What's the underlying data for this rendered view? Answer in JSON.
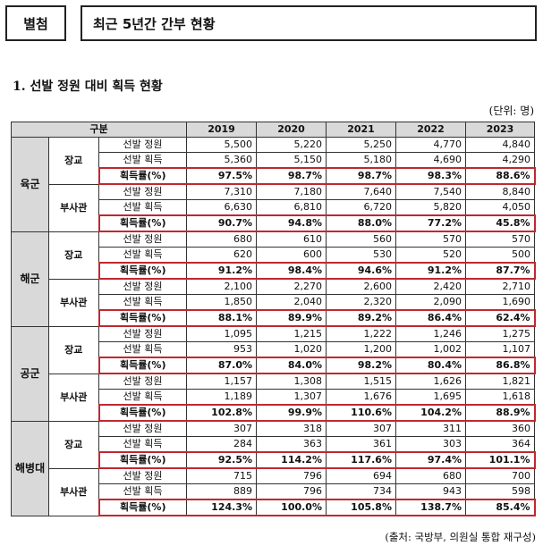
{
  "header": {
    "tag": "별첨",
    "title": "최근 5년간 간부 현황"
  },
  "section_title": "1. 선발 정원 대비 획득 현황",
  "unit": "(단위: 명)",
  "table": {
    "header_label": "구분",
    "years": [
      "2019",
      "2020",
      "2021",
      "2022",
      "2023"
    ],
    "branches": [
      {
        "name": "육군",
        "ranks": [
          {
            "name": "장교",
            "rows": [
              {
                "label": "선발 정원",
                "values": [
                  "5,500",
                  "5,220",
                  "5,250",
                  "4,770",
                  "4,840"
                ]
              },
              {
                "label": "선발 획득",
                "values": [
                  "5,360",
                  "5,150",
                  "5,180",
                  "4,690",
                  "4,290"
                ]
              },
              {
                "label": "획득률(%)",
                "values": [
                  "97.5%",
                  "98.7%",
                  "98.7%",
                  "98.3%",
                  "88.6%"
                ]
              }
            ]
          },
          {
            "name": "부사관",
            "rows": [
              {
                "label": "선발 정원",
                "values": [
                  "7,310",
                  "7,180",
                  "7,640",
                  "7,540",
                  "8,840"
                ]
              },
              {
                "label": "선발 획득",
                "values": [
                  "6,630",
                  "6,810",
                  "6,720",
                  "5,820",
                  "4,050"
                ]
              },
              {
                "label": "획득률(%)",
                "values": [
                  "90.7%",
                  "94.8%",
                  "88.0%",
                  "77.2%",
                  "45.8%"
                ]
              }
            ]
          }
        ]
      },
      {
        "name": "해군",
        "ranks": [
          {
            "name": "장교",
            "rows": [
              {
                "label": "선발 정원",
                "values": [
                  "680",
                  "610",
                  "560",
                  "570",
                  "570"
                ]
              },
              {
                "label": "선발 획득",
                "values": [
                  "620",
                  "600",
                  "530",
                  "520",
                  "500"
                ]
              },
              {
                "label": "획득률(%)",
                "values": [
                  "91.2%",
                  "98.4%",
                  "94.6%",
                  "91.2%",
                  "87.7%"
                ]
              }
            ]
          },
          {
            "name": "부사관",
            "rows": [
              {
                "label": "선발 정원",
                "values": [
                  "2,100",
                  "2,270",
                  "2,600",
                  "2,420",
                  "2,710"
                ]
              },
              {
                "label": "선발 획득",
                "values": [
                  "1,850",
                  "2,040",
                  "2,320",
                  "2,090",
                  "1,690"
                ]
              },
              {
                "label": "획득률(%)",
                "values": [
                  "88.1%",
                  "89.9%",
                  "89.2%",
                  "86.4%",
                  "62.4%"
                ]
              }
            ]
          }
        ]
      },
      {
        "name": "공군",
        "ranks": [
          {
            "name": "장교",
            "rows": [
              {
                "label": "선발 정원",
                "values": [
                  "1,095",
                  "1,215",
                  "1,222",
                  "1,246",
                  "1,275"
                ]
              },
              {
                "label": "선발 획득",
                "values": [
                  "953",
                  "1,020",
                  "1,200",
                  "1,002",
                  "1,107"
                ]
              },
              {
                "label": "획득률(%)",
                "values": [
                  "87.0%",
                  "84.0%",
                  "98.2%",
                  "80.4%",
                  "86.8%"
                ]
              }
            ]
          },
          {
            "name": "부사관",
            "rows": [
              {
                "label": "선발 정원",
                "values": [
                  "1,157",
                  "1,308",
                  "1,515",
                  "1,626",
                  "1,821"
                ]
              },
              {
                "label": "선발 획득",
                "values": [
                  "1,189",
                  "1,307",
                  "1,676",
                  "1,695",
                  "1,618"
                ]
              },
              {
                "label": "획득률(%)",
                "values": [
                  "102.8%",
                  "99.9%",
                  "110.6%",
                  "104.2%",
                  "88.9%"
                ]
              }
            ]
          }
        ]
      },
      {
        "name": "해병대",
        "ranks": [
          {
            "name": "장교",
            "rows": [
              {
                "label": "선발 정원",
                "values": [
                  "307",
                  "318",
                  "307",
                  "311",
                  "360"
                ]
              },
              {
                "label": "선발 획득",
                "values": [
                  "284",
                  "363",
                  "361",
                  "303",
                  "364"
                ]
              },
              {
                "label": "획득률(%)",
                "values": [
                  "92.5%",
                  "114.2%",
                  "117.6%",
                  "97.4%",
                  "101.1%"
                ]
              }
            ]
          },
          {
            "name": "부사관",
            "rows": [
              {
                "label": "선발 정원",
                "values": [
                  "715",
                  "796",
                  "694",
                  "680",
                  "700"
                ]
              },
              {
                "label": "선발 획득",
                "values": [
                  "889",
                  "796",
                  "734",
                  "943",
                  "598"
                ]
              },
              {
                "label": "획득률(%)",
                "values": [
                  "124.3%",
                  "100.0%",
                  "105.8%",
                  "138.7%",
                  "85.4%"
                ]
              }
            ]
          }
        ]
      }
    ]
  },
  "source": "(출처: 국방부, 의원실 통합 재구성)"
}
